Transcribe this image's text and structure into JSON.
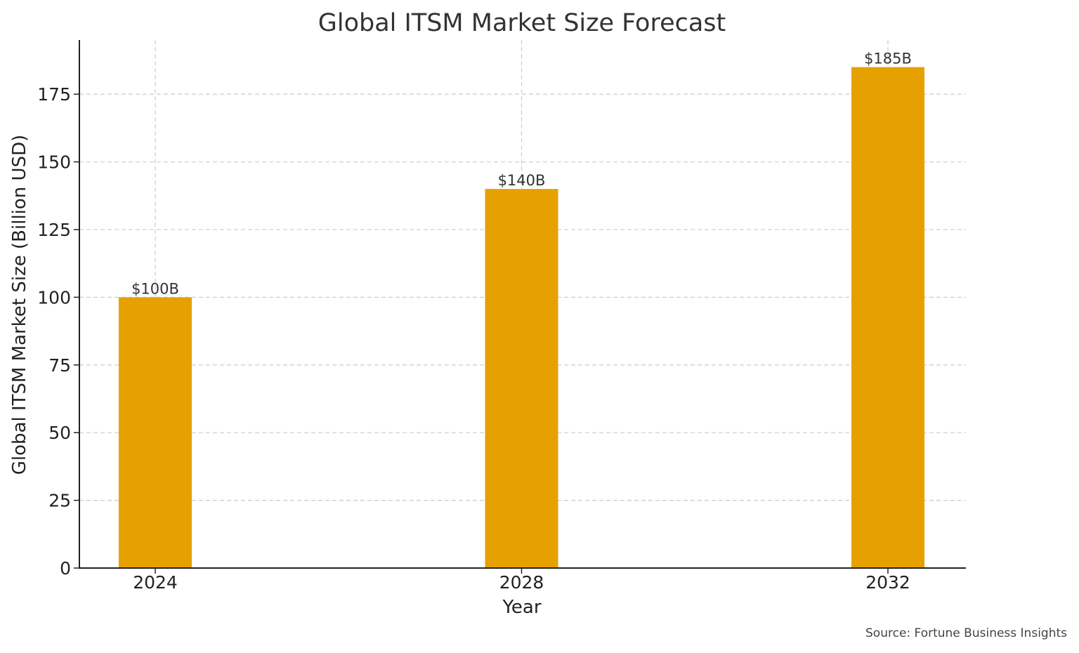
{
  "chart_data": {
    "type": "bar",
    "title": "Global ITSM Market Size Forecast",
    "xlabel": "Year",
    "ylabel": "Global ITSM Market Size (Billion USD)",
    "categories": [
      "2024",
      "2028",
      "2032"
    ],
    "values": [
      100,
      140,
      185
    ],
    "data_labels": [
      "$100B",
      "$140B",
      "$185B"
    ],
    "ylim": [
      0,
      195
    ],
    "yticks": [
      0,
      25,
      50,
      75,
      100,
      125,
      150,
      175
    ],
    "grid": true,
    "bar_color": "#E6A100",
    "source": "Source: Fortune Business Insights"
  }
}
